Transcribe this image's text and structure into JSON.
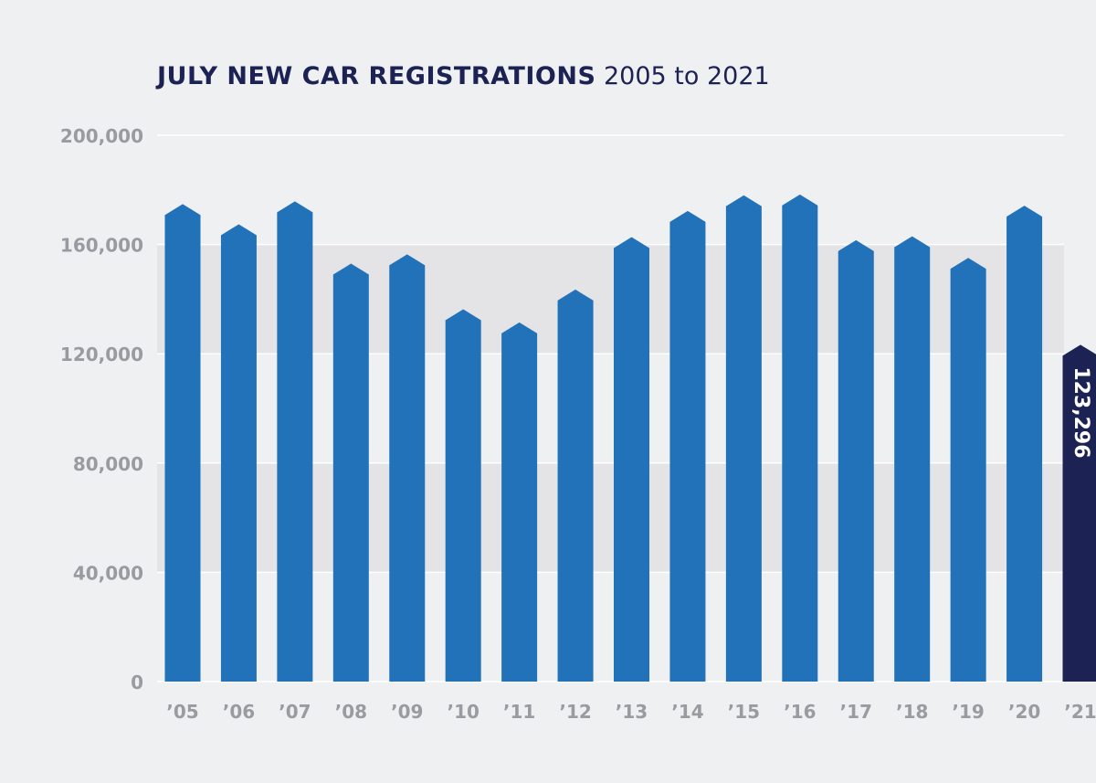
{
  "chart_data": {
    "type": "bar",
    "title": "JULY NEW CAR REGISTRATIONS",
    "subtitle": "2005 to 2021",
    "categories": [
      "’05",
      "’06",
      "’07",
      "’08",
      "’09",
      "’10",
      "’11",
      "’12",
      "’13",
      "’14",
      "’15",
      "’16",
      "’17",
      "’18",
      "’19",
      "’20",
      "’21"
    ],
    "values": [
      174800,
      167400,
      175800,
      153000,
      156400,
      136300,
      131500,
      143500,
      162700,
      172300,
      178000,
      178300,
      161600,
      163000,
      155100,
      174200,
      123296
    ],
    "data_labels": {
      "16": "123,296"
    },
    "ylim": [
      0,
      200000
    ],
    "yticks": [
      0,
      40000,
      80000,
      120000,
      160000,
      200000
    ],
    "ytick_labels": [
      "0",
      "40,000",
      "80,000",
      "120,000",
      "160,000",
      "200,000"
    ],
    "grid": true,
    "colors": {
      "bar": "#2272b9",
      "highlight": "#1c2354",
      "band": "#e4e3e6",
      "background": "#eff0f2",
      "tick_text": "#9a9aa0"
    }
  }
}
